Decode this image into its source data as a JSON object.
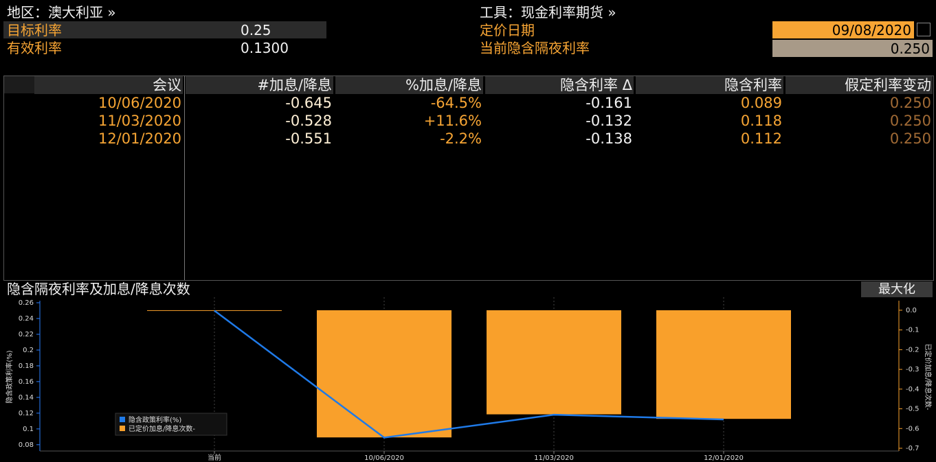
{
  "header": {
    "region": "地区：澳大利亚 »",
    "instrument": "工具：现金利率期货 »",
    "fields": [
      {
        "label": "目标利率",
        "value": "0.25"
      },
      {
        "label": "有效利率",
        "value": "0.1300"
      }
    ],
    "pricing_date": {
      "label": "定价日期",
      "value": "09/08/2020"
    },
    "implied_rate": {
      "label": "当前隐含隔夜利率",
      "value": "0.250"
    }
  },
  "table": {
    "columns": [
      "会议",
      "#加息/降息",
      "%加息/降息",
      "隐含利率 Δ",
      "隐含利率",
      "假定利率变动"
    ],
    "rows": [
      [
        "10/06/2020",
        "-0.645",
        "-64.5%",
        "-0.161",
        "0.089",
        "0.250"
      ],
      [
        "11/03/2020",
        "-0.528",
        "+11.6%",
        "-0.132",
        "0.118",
        "0.250"
      ],
      [
        "12/01/2020",
        "-0.551",
        "-2.2%",
        "-0.138",
        "0.112",
        "0.250"
      ]
    ]
  },
  "ui": {
    "maximize": "最大化"
  },
  "chart_data": {
    "type": "combo",
    "title": "隐含隔夜利率及加息/降息次数",
    "y_label": "隐含政策利率(%)",
    "y2_label": "已定价加息/降息次数-",
    "categories": [
      "当前",
      "10/06/2020",
      "11/03/2020",
      "12/01/2020"
    ],
    "series": [
      {
        "name": "隐含政策利率(%)",
        "type": "line",
        "color": "#1f7ae8",
        "axis": "y",
        "values": [
          0.25,
          0.089,
          0.118,
          0.112
        ]
      },
      {
        "name": "已定价加息/降息次数-",
        "type": "bar",
        "color": "#f9a02b",
        "axis": "y2",
        "values": [
          0,
          -0.645,
          -0.528,
          -0.551
        ]
      }
    ],
    "ylim": [
      0.072,
      0.26
    ],
    "yticks": [
      0.08,
      0.1,
      0.12,
      0.14,
      0.16,
      0.18,
      0.2,
      0.22,
      0.24,
      0.26
    ],
    "y2lim": [
      -0.714,
      0.038
    ],
    "y2ticks": [
      {
        "value": 0,
        "label": "0.0"
      },
      -0.1,
      -0.2,
      -0.3,
      -0.4,
      -0.5,
      -0.6,
      -0.7
    ],
    "grid": "x",
    "legend": "lower-left"
  }
}
